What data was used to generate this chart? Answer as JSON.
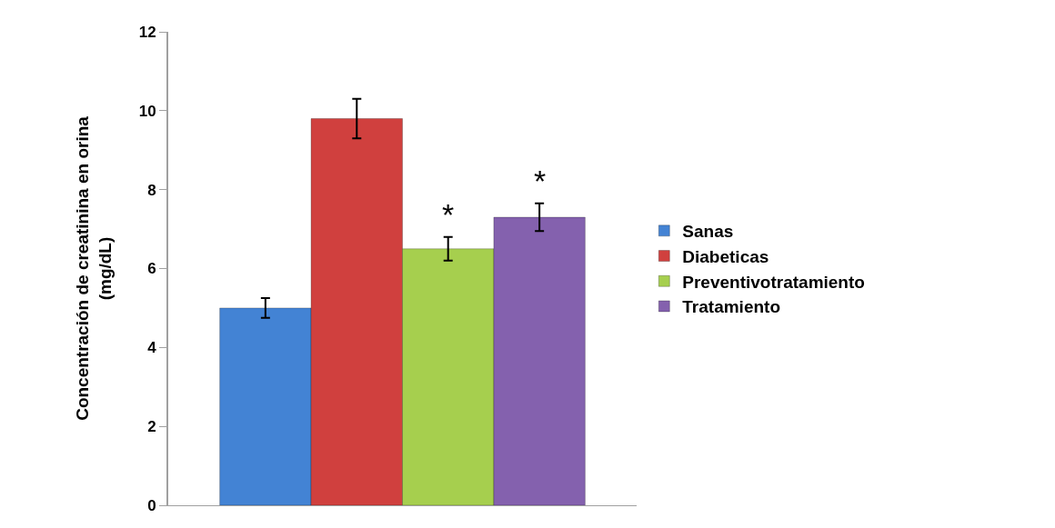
{
  "chart_data": {
    "type": "bar",
    "ylabel": "Concentración de creatinina en orina\n(mg/dL)",
    "categories": [
      null
    ],
    "series": [
      {
        "name": "Sanas",
        "color": "#4383d4",
        "values": [
          5.0
        ],
        "errors": [
          0.25
        ]
      },
      {
        "name": "Diabeticas",
        "color": "#d0403e",
        "values": [
          9.8
        ],
        "errors": [
          0.5
        ]
      },
      {
        "name": "Preventivotratamiento",
        "color": "#a6cf4e",
        "values": [
          6.5
        ],
        "errors": [
          0.3
        ]
      },
      {
        "name": "Tratamiento",
        "color": "#8461ae",
        "values": [
          7.3
        ],
        "errors": [
          0.35
        ]
      }
    ],
    "annotations": [
      "*",
      "*"
    ],
    "ylim": [
      0,
      12
    ],
    "yticks": [
      0,
      2,
      4,
      6,
      8,
      10,
      12
    ],
    "legend": "right"
  }
}
